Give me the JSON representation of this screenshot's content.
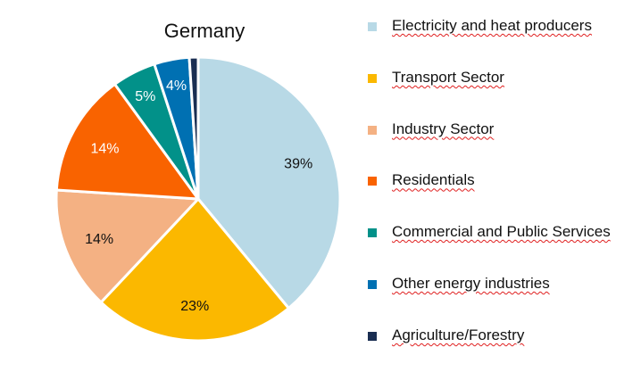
{
  "chart_data": {
    "type": "pie",
    "title": "Germany",
    "legend_position": "right",
    "slices": [
      {
        "name": "Electricity and heat producers",
        "value": 39,
        "label": "39%",
        "color": "#b8d9e6",
        "label_color": "#111111"
      },
      {
        "name": "Transport Sector",
        "value": 23,
        "label": "23%",
        "color": "#fbb800",
        "label_color": "#111111"
      },
      {
        "name": "Industry Sector",
        "value": 14,
        "label": "14%",
        "color": "#f4b183",
        "label_color": "#111111"
      },
      {
        "name": "Residentials",
        "value": 14,
        "label": "14%",
        "color": "#f96300",
        "label_color": "#ffffff"
      },
      {
        "name": "Commercial and Public Services",
        "value": 5,
        "label": "5%",
        "color": "#029189",
        "label_color": "#ffffff"
      },
      {
        "name": "Other energy industries",
        "value": 4,
        "label": "4%",
        "color": "#0070b2",
        "label_color": "#ffffff"
      },
      {
        "name": "Agriculture/Forestry",
        "value": 1,
        "label": "",
        "color": "#1a2e52",
        "label_color": "#ffffff"
      }
    ]
  }
}
